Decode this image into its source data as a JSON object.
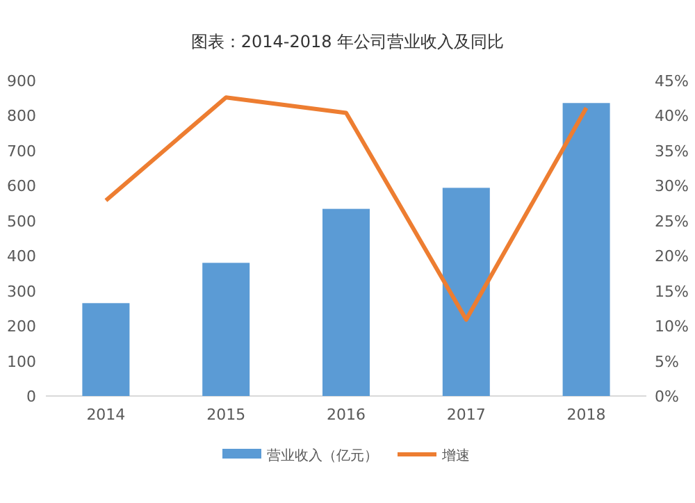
{
  "chart_data": {
    "type": "bar",
    "title": "图表：2014-2018 年公司营业收入及同比",
    "categories": [
      "2014",
      "2015",
      "2016",
      "2017",
      "2018"
    ],
    "series": [
      {
        "name": "营业收入（亿元）",
        "color": "#5b9bd5",
        "values": [
          265,
          380,
          534,
          594,
          836
        ]
      },
      {
        "name": "增速",
        "type": "line",
        "axis": "y2",
        "color": "#ed7d31",
        "values": [
          27.9,
          42.6,
          40.4,
          10.9,
          41.1
        ]
      }
    ],
    "ylim": [
      0,
      900
    ],
    "yticks": [
      0,
      100,
      200,
      300,
      400,
      500,
      600,
      700,
      800,
      900
    ],
    "y2lim": [
      0,
      45
    ],
    "y2ticks": [
      {
        "value": 0,
        "label": "0%"
      },
      {
        "value": 5,
        "label": "5%"
      },
      {
        "value": 10,
        "label": "10%"
      },
      {
        "value": 15,
        "label": "15%"
      },
      {
        "value": 20,
        "label": "20%"
      },
      {
        "value": 25,
        "label": "25%"
      },
      {
        "value": 30,
        "label": "30%"
      },
      {
        "value": 35,
        "label": "35%"
      },
      {
        "value": 40,
        "label": "40%"
      },
      {
        "value": 45,
        "label": "45%"
      }
    ],
    "grid": false,
    "legend": "bottom"
  }
}
